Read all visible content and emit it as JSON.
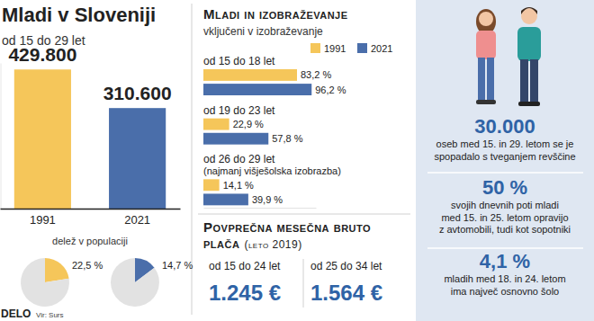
{
  "header": {
    "title": "Mladi v Sloveniji",
    "subtitle": "od 15 do 29 let"
  },
  "chart_data": [
    {
      "type": "bar",
      "categories": [
        "1991",
        "2021"
      ],
      "values": [
        429800,
        310600
      ],
      "value_labels": [
        "429.800",
        "310.600"
      ],
      "colors": [
        "#f5c65a",
        "#4a6eaa"
      ],
      "ylim": [
        0,
        450000
      ],
      "data_labels": true,
      "tick_labels": "x"
    },
    {
      "type": "pie",
      "title": "delež v populaciji",
      "values": [
        22.5,
        77.5
      ],
      "value_labels": [
        "22,5 %",
        null
      ],
      "colors": [
        "#f5c65a",
        "#e2e2e2"
      ],
      "data_labels": true
    },
    {
      "type": "pie",
      "values": [
        14.7,
        85.3
      ],
      "value_labels": [
        "14,7 %",
        null
      ],
      "colors": [
        "#4a6eaa",
        "#e2e2e2"
      ],
      "data_labels": true
    },
    {
      "type": "bar",
      "orientation": "horizontal",
      "title": "Mladi in izobraževanje",
      "subtitle": "vključeni v izobraževanje",
      "categories": [
        "od 15 do 18 let",
        "od 19 do 23 let",
        "od 26 do 29 let"
      ],
      "annotations": [
        "(najmanj višješolska izobrazba)"
      ],
      "series": [
        {
          "name": "1991",
          "color": "#f5c65a",
          "values": [
            83.2,
            22.9,
            14.1
          ],
          "value_labels": [
            "83,2 %",
            "22,9 %",
            "14,1 %"
          ]
        },
        {
          "name": "2021",
          "color": "#4a6eaa",
          "values": [
            96.2,
            57.8,
            39.9
          ],
          "value_labels": [
            "96,2 %",
            "57,8 %",
            "39,9 %"
          ]
        }
      ],
      "xlim": [
        0,
        100
      ],
      "legend": "top-right",
      "data_labels": true,
      "tick_labels": "y"
    }
  ],
  "salary": {
    "title": [
      "Povprečna mesečna bruto",
      "plača"
    ],
    "period": "(leto 2019)",
    "items": [
      {
        "label": "od 15 do 24 let",
        "value": "1.245 €"
      },
      {
        "label": "od 25 do 34 let",
        "value": "1.564 €"
      }
    ]
  },
  "facts": [
    {
      "value": "30.000",
      "lines": [
        "oseb med 15. in 29. letom se je",
        "spopadalo s tveganjem revščine"
      ]
    },
    {
      "value": "50 %",
      "lines": [
        "svojih dnevnih poti mladi",
        "med 15. in 25. letom opravijo",
        "z avtomobili, tudi kot sopotniki"
      ]
    },
    {
      "value": "4,1 %",
      "lines": [
        "mladih med 18. in 24. letom",
        "ima največ osnovno šolo"
      ]
    }
  ],
  "source": {
    "brand": "DELO",
    "text": "Vir: Surs"
  }
}
